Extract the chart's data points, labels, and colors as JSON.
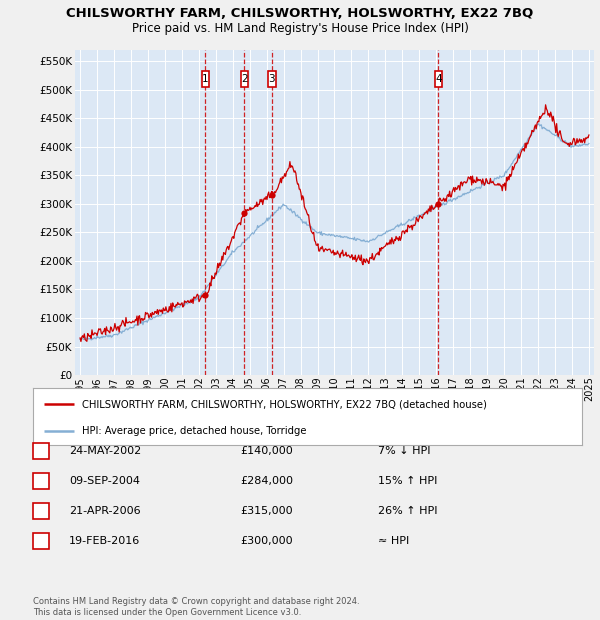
{
  "title": "CHILSWORTHY FARM, CHILSWORTHY, HOLSWORTHY, EX22 7BQ",
  "subtitle": "Price paid vs. HM Land Registry's House Price Index (HPI)",
  "title_fontsize": 9.5,
  "subtitle_fontsize": 8.5,
  "bg_color": "#f0f0f0",
  "plot_bg_color": "#dce8f5",
  "grid_color": "#ffffff",
  "red_line_color": "#cc0000",
  "blue_line_color": "#85afd4",
  "ylim_max": 570000,
  "yticks": [
    0,
    50000,
    100000,
    150000,
    200000,
    250000,
    300000,
    350000,
    400000,
    450000,
    500000,
    550000
  ],
  "ytick_labels": [
    "£0",
    "£50K",
    "£100K",
    "£150K",
    "£200K",
    "£250K",
    "£300K",
    "£350K",
    "£400K",
    "£450K",
    "£500K",
    "£550K"
  ],
  "xmin": 1994.7,
  "xmax": 2025.3,
  "xticks": [
    1995,
    1996,
    1997,
    1998,
    1999,
    2000,
    2001,
    2002,
    2003,
    2004,
    2005,
    2006,
    2007,
    2008,
    2009,
    2010,
    2011,
    2012,
    2013,
    2014,
    2015,
    2016,
    2017,
    2018,
    2019,
    2020,
    2021,
    2022,
    2023,
    2024,
    2025
  ],
  "transactions": [
    {
      "num": 1,
      "year": 2002.39,
      "price": 140000,
      "label": "1"
    },
    {
      "num": 2,
      "year": 2004.69,
      "price": 284000,
      "label": "2"
    },
    {
      "num": 3,
      "year": 2006.31,
      "price": 315000,
      "label": "3"
    },
    {
      "num": 4,
      "year": 2016.13,
      "price": 300000,
      "label": "4"
    }
  ],
  "legend_entries": [
    "CHILSWORTHY FARM, CHILSWORTHY, HOLSWORTHY, EX22 7BQ (detached house)",
    "HPI: Average price, detached house, Torridge"
  ],
  "table_rows": [
    {
      "num": "1",
      "date": "24-MAY-2002",
      "price": "£140,000",
      "relation": "7% ↓ HPI"
    },
    {
      "num": "2",
      "date": "09-SEP-2004",
      "price": "£284,000",
      "relation": "15% ↑ HPI"
    },
    {
      "num": "3",
      "date": "21-APR-2006",
      "price": "£315,000",
      "relation": "26% ↑ HPI"
    },
    {
      "num": "4",
      "date": "19-FEB-2016",
      "price": "£300,000",
      "relation": "≈ HPI"
    }
  ],
  "footnote": "Contains HM Land Registry data © Crown copyright and database right 2024.\nThis data is licensed under the Open Government Licence v3.0."
}
